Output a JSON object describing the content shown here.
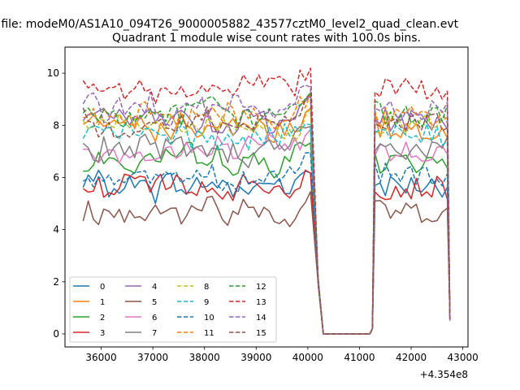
{
  "figure": {
    "suptitle": "n file: modeM0/AS1A10_094T26_9000005882_43577cztM0_level2_quad_clean.evt"
  },
  "chart_data": {
    "type": "line",
    "title": "Quadrant 1 module wise count rates with 100.0s bins.",
    "xlabel": "",
    "ylabel": "",
    "x_offset_label": "+4.354e8",
    "xlim": [
      35300,
      43100
    ],
    "ylim": [
      -0.5,
      11
    ],
    "x_ticks": [
      36000,
      37000,
      38000,
      39000,
      40000,
      41000,
      42000,
      43000
    ],
    "y_ticks": [
      0,
      2,
      4,
      6,
      8,
      10
    ],
    "grid": false,
    "legend": {
      "placement": "lower-left",
      "columns": 4
    },
    "series": [
      {
        "name": "0",
        "color": "#1f77b4",
        "dash": "solid",
        "level": 5.7
      },
      {
        "name": "1",
        "color": "#ff7f0e",
        "dash": "solid",
        "level": 7.9
      },
      {
        "name": "2",
        "color": "#2ca02c",
        "dash": "solid",
        "level": 6.6
      },
      {
        "name": "3",
        "color": "#d62728",
        "dash": "solid",
        "level": 5.6
      },
      {
        "name": "4",
        "color": "#9467bd",
        "dash": "solid",
        "level": 8.2
      },
      {
        "name": "5",
        "color": "#8c564b",
        "dash": "solid",
        "level": 4.7
      },
      {
        "name": "6",
        "color": "#e377c2",
        "dash": "solid",
        "level": 7.0
      },
      {
        "name": "7",
        "color": "#7f7f7f",
        "dash": "solid",
        "level": 7.1
      },
      {
        "name": "8",
        "color": "#bcbd22",
        "dash": "dashed",
        "level": 8.0
      },
      {
        "name": "9",
        "color": "#17becf",
        "dash": "dashed",
        "level": 7.6
      },
      {
        "name": "10",
        "color": "#1f77b4",
        "dash": "dashed",
        "level": 6.1
      },
      {
        "name": "11",
        "color": "#ff7f0e",
        "dash": "dashed",
        "level": 8.3
      },
      {
        "name": "12",
        "color": "#2ca02c",
        "dash": "dashed",
        "level": 8.4
      },
      {
        "name": "13",
        "color": "#d62728",
        "dash": "dashed",
        "level": 9.4
      },
      {
        "name": "14",
        "color": "#9467bd",
        "dash": "dashed",
        "level": 8.6
      },
      {
        "name": "15",
        "color": "#8c564b",
        "dash": "dashed",
        "level": 8.1
      }
    ],
    "segments": [
      {
        "x_start": 35650,
        "x_end": 40100,
        "step": 100
      },
      {
        "x_start": 40200,
        "x_end": 40300,
        "values": [
          2.0,
          0.0
        ]
      },
      {
        "x_start": 40300,
        "x_end": 41200,
        "values": [
          0.0
        ]
      },
      {
        "x_start": 41300,
        "x_end": 42700,
        "step": 100
      }
    ]
  }
}
